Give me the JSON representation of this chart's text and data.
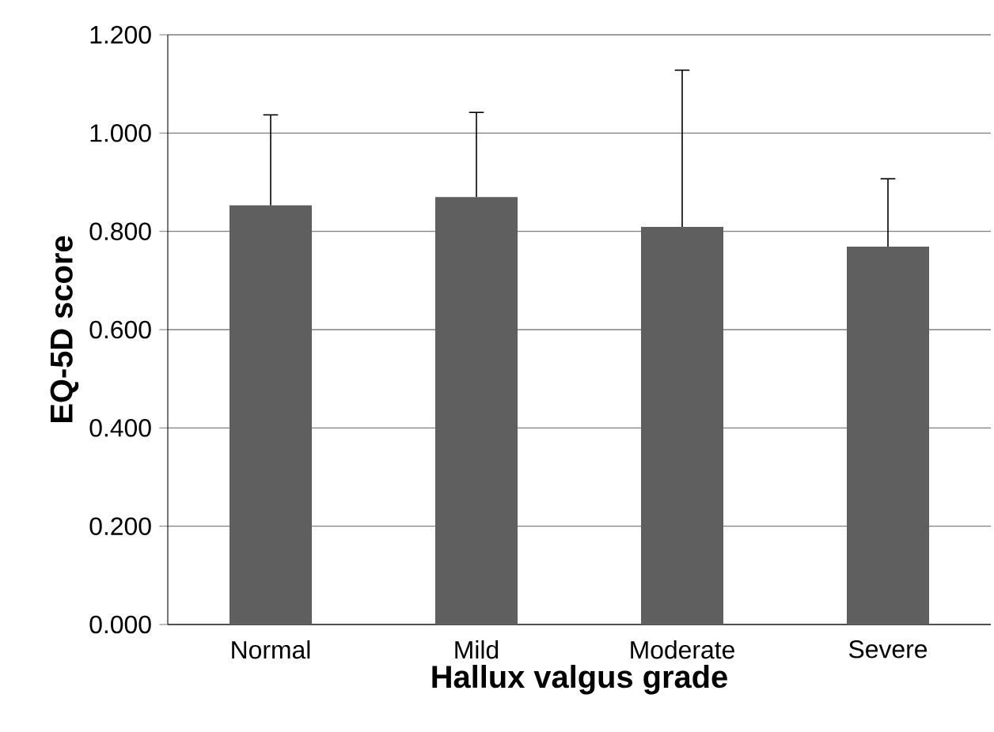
{
  "chart_data": {
    "type": "bar",
    "xlabel": "Hallux valgus grade",
    "ylabel": "EQ-5D score",
    "categories": [
      "Normal",
      "Mild",
      "Moderate",
      "Severe"
    ],
    "values": [
      0.853,
      0.87,
      0.809,
      0.769
    ],
    "errors": [
      [
        0.853,
        1.037
      ],
      [
        0.87,
        1.042
      ],
      [
        0.809,
        1.128
      ],
      [
        0.769,
        0.907
      ]
    ],
    "color": "#5f5f5f",
    "ylim": [
      0,
      1.2
    ],
    "yticks": [
      {
        "value": 0,
        "label": "0.000"
      },
      {
        "value": 0.2,
        "label": "0.200"
      },
      {
        "value": 0.4,
        "label": "0.400"
      },
      {
        "value": 0.6,
        "label": "0.600"
      },
      {
        "value": 0.8,
        "label": "0.800"
      },
      {
        "value": 1.0,
        "label": "1.000"
      },
      {
        "value": 1.2,
        "label": "1.200"
      }
    ],
    "grid": "y"
  }
}
